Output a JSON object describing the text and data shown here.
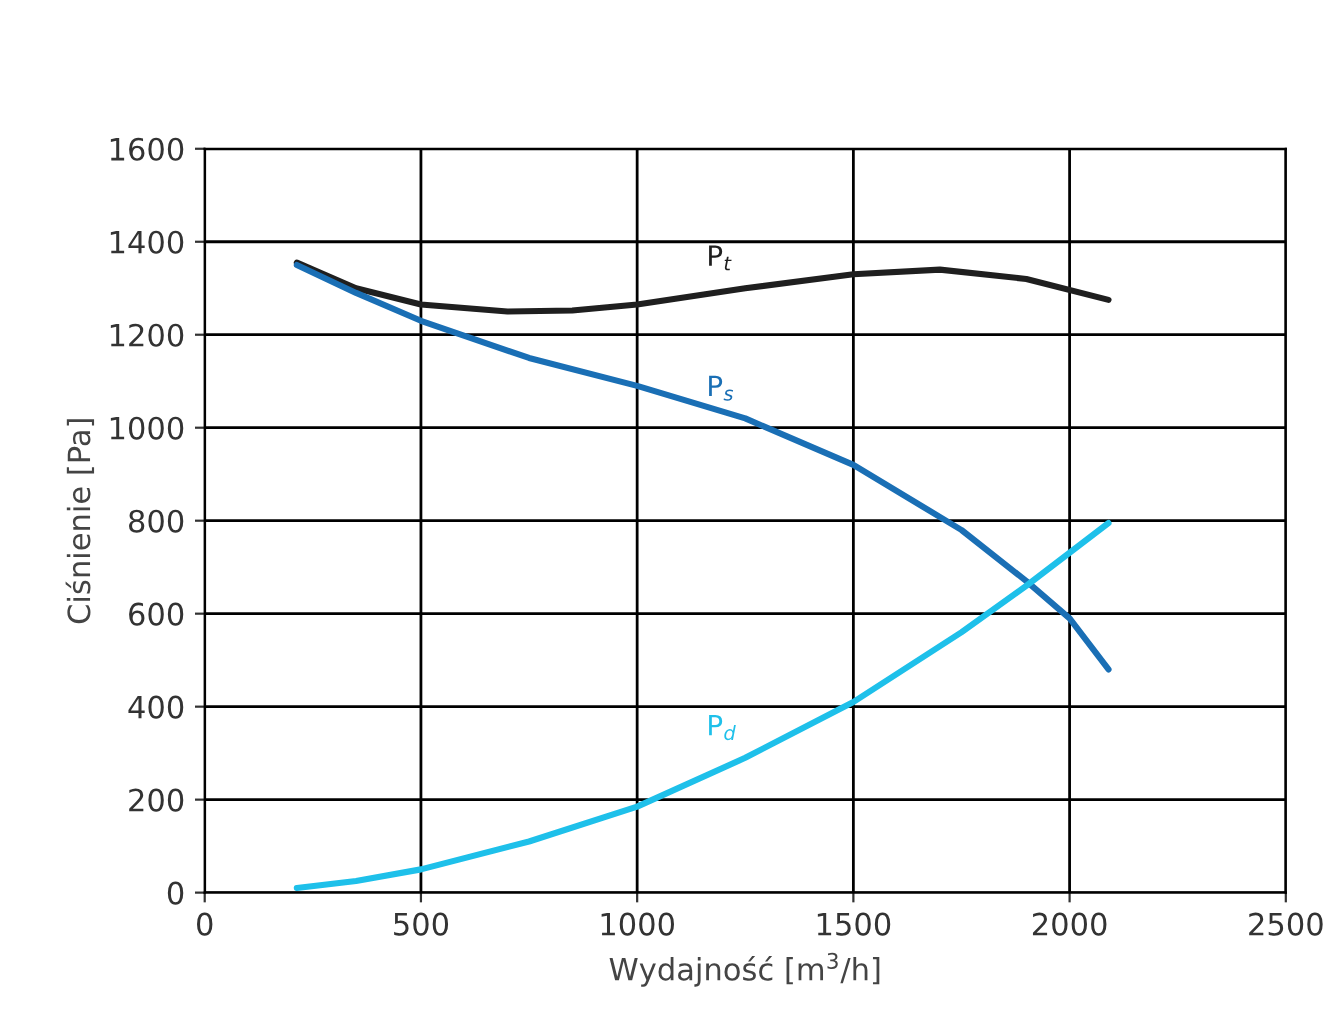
{
  "chart_data": {
    "type": "line",
    "xlabel": "Wydajność [m$^{3}$/h]",
    "ylabel": "Ciśnienie [Pa]",
    "xlim": [
      0,
      2500
    ],
    "xticks": [
      0,
      500,
      1000,
      1500,
      2000,
      2500
    ],
    "ylim": [
      0,
      1600
    ],
    "yticks": [
      0,
      200,
      400,
      600,
      800,
      1000,
      1200,
      1400,
      1600
    ],
    "grid": true,
    "marker": "none",
    "line_style": "solid",
    "series": [
      {
        "name": "P$_{t}$",
        "color": "#1f1f1f",
        "x": [
          213,
          350,
          500,
          700,
          850,
          1000,
          1250,
          1500,
          1700,
          1900,
          2090
        ],
        "values": [
          1355,
          1300,
          1265,
          1250,
          1252,
          1265,
          1300,
          1330,
          1340,
          1320,
          1275
        ]
      },
      {
        "name": "P$_{s}$",
        "color": "#1a6fb5",
        "x": [
          213,
          350,
          500,
          750,
          1000,
          1250,
          1500,
          1750,
          1900,
          2000,
          2090
        ],
        "values": [
          1350,
          1290,
          1230,
          1150,
          1090,
          1020,
          920,
          780,
          670,
          590,
          480
        ]
      },
      {
        "name": "P$_{d}$",
        "color": "#1ec0ea",
        "x": [
          213,
          350,
          500,
          750,
          1000,
          1250,
          1500,
          1750,
          1900,
          2090
        ],
        "values": [
          10,
          25,
          50,
          110,
          185,
          290,
          410,
          560,
          660,
          795
        ]
      }
    ]
  }
}
